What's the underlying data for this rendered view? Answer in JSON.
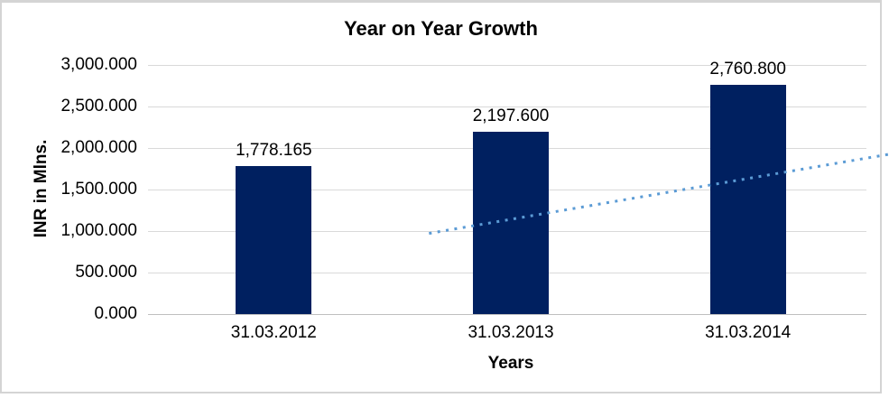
{
  "chart_data": {
    "type": "bar",
    "title": "Year on Year Growth",
    "xlabel": "Years",
    "ylabel": "INR in Mlns.",
    "categories": [
      "31.03.2012",
      "31.03.2013",
      "31.03.2014"
    ],
    "values": [
      1778.165,
      2197.6,
      2760.8
    ],
    "value_labels": [
      "1,778.165",
      "2,197.600",
      "2,760.800"
    ],
    "y_tick_labels": [
      "3,000.000",
      "2,500.000",
      "2,000.000",
      "1,500.000",
      "1,000.000",
      "500.000",
      "0.000"
    ],
    "y_tick_values": [
      3000,
      2500,
      2000,
      1500,
      1000,
      500,
      0
    ],
    "ylim": [
      0,
      3000
    ],
    "grid": true,
    "legend": "none",
    "bar_color": "#002060",
    "gridline_color": "#d9d9d9",
    "axis_line_color": "#bfbfbf",
    "trendline": {
      "style": "dotted",
      "color": "#5b9bd5"
    }
  }
}
